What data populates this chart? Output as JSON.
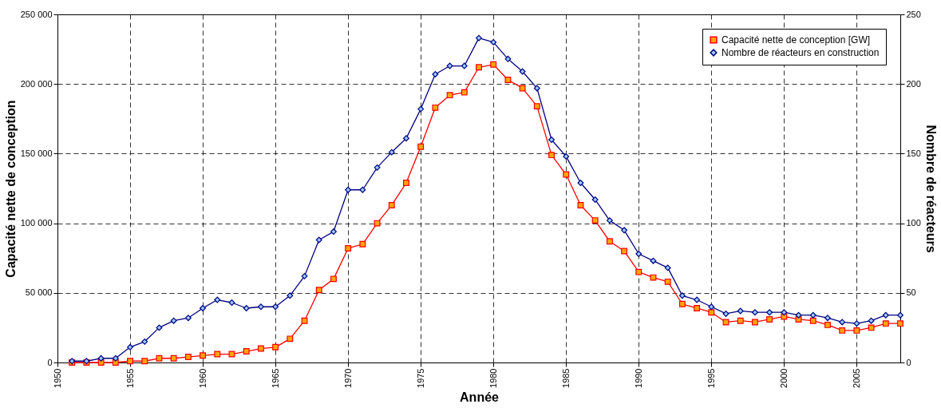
{
  "chart_data": {
    "type": "line",
    "xlabel": "Année",
    "ylabel": "Capacité nette de conception",
    "y2label": "Nombre de réacteurs",
    "x": [
      1951,
      1952,
      1953,
      1954,
      1955,
      1956,
      1957,
      1958,
      1959,
      1960,
      1961,
      1962,
      1963,
      1964,
      1965,
      1966,
      1967,
      1968,
      1969,
      1970,
      1971,
      1972,
      1973,
      1974,
      1975,
      1976,
      1977,
      1978,
      1979,
      1980,
      1981,
      1982,
      1983,
      1984,
      1985,
      1986,
      1987,
      1988,
      1989,
      1990,
      1991,
      1992,
      1993,
      1994,
      1995,
      1996,
      1997,
      1998,
      1999,
      2000,
      2001,
      2002,
      2003,
      2004,
      2005,
      2006,
      2007,
      2008
    ],
    "series": [
      {
        "name": "Capacité nette de conception [GW]",
        "color": "#ff0000",
        "marker": "square",
        "values": [
          0,
          0,
          0,
          0,
          1000,
          1000,
          3000,
          3000,
          4000,
          5000,
          6000,
          6000,
          8000,
          10000,
          11000,
          17000,
          30000,
          52000,
          60000,
          82000,
          85000,
          100000,
          113000,
          129000,
          155000,
          183000,
          192000,
          194000,
          212000,
          214000,
          203000,
          197000,
          184000,
          149000,
          135000,
          113000,
          102000,
          87000,
          80000,
          65000,
          61000,
          58000,
          42000,
          39000,
          36000,
          29000,
          30000,
          29000,
          31000,
          33000,
          31000,
          30000,
          27000,
          23000,
          23000,
          25000,
          28000,
          28000
        ]
      },
      {
        "name": "Nombre de réacteurs en construction",
        "color": "#000080",
        "marker": "diamond",
        "axis": "y2",
        "values": [
          1,
          1,
          3,
          3,
          11,
          15,
          25,
          30,
          32,
          39,
          45,
          43,
          39,
          40,
          40,
          48,
          62,
          88,
          94,
          124,
          124,
          140,
          151,
          161,
          182,
          207,
          213,
          213,
          233,
          230,
          218,
          209,
          197,
          160,
          148,
          129,
          117,
          102,
          95,
          78,
          73,
          68,
          48,
          45,
          40,
          35,
          37,
          36,
          36,
          36,
          34,
          34,
          32,
          29,
          28,
          30,
          34,
          34
        ]
      }
    ],
    "xlim": [
      1950,
      2008
    ],
    "xticks": [
      1950,
      1955,
      1960,
      1965,
      1970,
      1975,
      1980,
      1985,
      1990,
      1995,
      2000,
      2005
    ],
    "ylim": [
      0,
      250000
    ],
    "yticks": [
      {
        "value": 0,
        "label": "0"
      },
      {
        "value": 50000,
        "label": "50 000"
      },
      {
        "value": 100000,
        "label": "100 000"
      },
      {
        "value": 150000,
        "label": "150 000"
      },
      {
        "value": 200000,
        "label": "200 000"
      },
      {
        "value": 250000,
        "label": "250 000"
      }
    ],
    "y2lim": [
      0,
      250
    ],
    "y2ticks": [
      0,
      50,
      100,
      150,
      200,
      250
    ],
    "grid": true,
    "legend": "top right",
    "line_style": "solid"
  }
}
